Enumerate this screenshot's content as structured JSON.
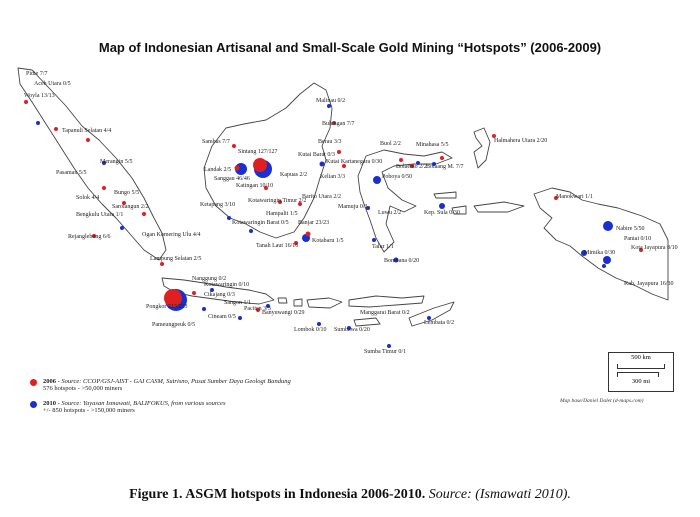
{
  "map": {
    "title": "Map of Indonesian Artisanal and Small-Scale Gold Mining “Hotspots” (2006-2009)",
    "colors": {
      "series2006": "#e02020",
      "series2010": "#1a2fd0",
      "coast": "#444444"
    },
    "labels": [
      "Pidie 7/7",
      "Aceh Utara 0/5",
      "Woyla 13/13",
      "Tapanuli Selatan 4/4",
      "Merangin 5/5",
      "Pasaman 5/5",
      "Solok 4/4",
      "Bungo 5/5",
      "Sarolangun 2/2",
      "Bengkulu Utara 1/1",
      "Rejanglebong 6/6",
      "Ogan Komering Ulu 4/4",
      "Lampung Selatan 2/5",
      "Pongkor 213/213",
      "Cikajang 0/3",
      "Nanggung 0/2",
      "Kotawaringin 0/10",
      "Sangon 1/1",
      "Cineam 0/5",
      "Pameungpeuk 0/5",
      "Paciten 3/3",
      "Banyuwangi 0/29",
      "Lombok 0/10",
      "Sumbawa 0/20",
      "Manggarai Barat 0/2",
      "Lembata 0/2",
      "Sumba Timur 0/1",
      "Sambas 7/7",
      "Sintang 127/127",
      "Landak 2/5",
      "Sanggau 46/46",
      "Katingan 10/10",
      "Ketapang 3/10",
      "Kotawaringin Timur 2/2",
      "Kotawaringin Barat 0/5",
      "Hampalit 1/5",
      "Kapuas 2/2",
      "Barito Utara 2/2",
      "Tanah Laut 16/16",
      "Banjar 23/23",
      "Kotabaru 1/5",
      "Malinau 0/2",
      "Bulungan 7/7",
      "Berau 3/3",
      "Kutai Barat 0/3",
      "Kutai Kartanegara 0/30",
      "Kelian 3/3",
      "Mamuju 0/3",
      "Luwu 2/2",
      "Talur 1/1",
      "Bombana 0/20",
      "Poboya 0/50",
      "Buol 2/2",
      "Bolaemo 2/2",
      "Bolaang M. 7/7",
      "Minahasa 5/5",
      "Halmahera Utara 2/20",
      "Kep. Sula 0/30",
      "Manokwari 1/1",
      "Nabire 5/50",
      "Paniai 0/10",
      "Mimika 0/30",
      "Kota Jayapura 8/10",
      "Kab. Jayapura 16/30"
    ]
  },
  "legend": {
    "entry2006": {
      "year": "2006",
      "source": " - Source: CCOP/GSJ-AIST - GAI CASM, Sutrisno, Pusat Sumber Daya Geologi Bandung",
      "detail": "576 hotspots - >50,000 miners"
    },
    "entry2010": {
      "year": "2010",
      "source": " - Source: Yayasan Ismawati, BALIFOKUS, from various sources",
      "detail": "+/- 850 hotspots - >150,000 miners"
    }
  },
  "scale": {
    "km": "500 km",
    "mi": "300 mi"
  },
  "credit": "Map base/Daniel Dalet (d-maps.com)",
  "caption": {
    "main": "Figure 1. ASGM hotspots in Indonesia 2006-2010.",
    "source": " Source: (Ismawati 2010)."
  }
}
